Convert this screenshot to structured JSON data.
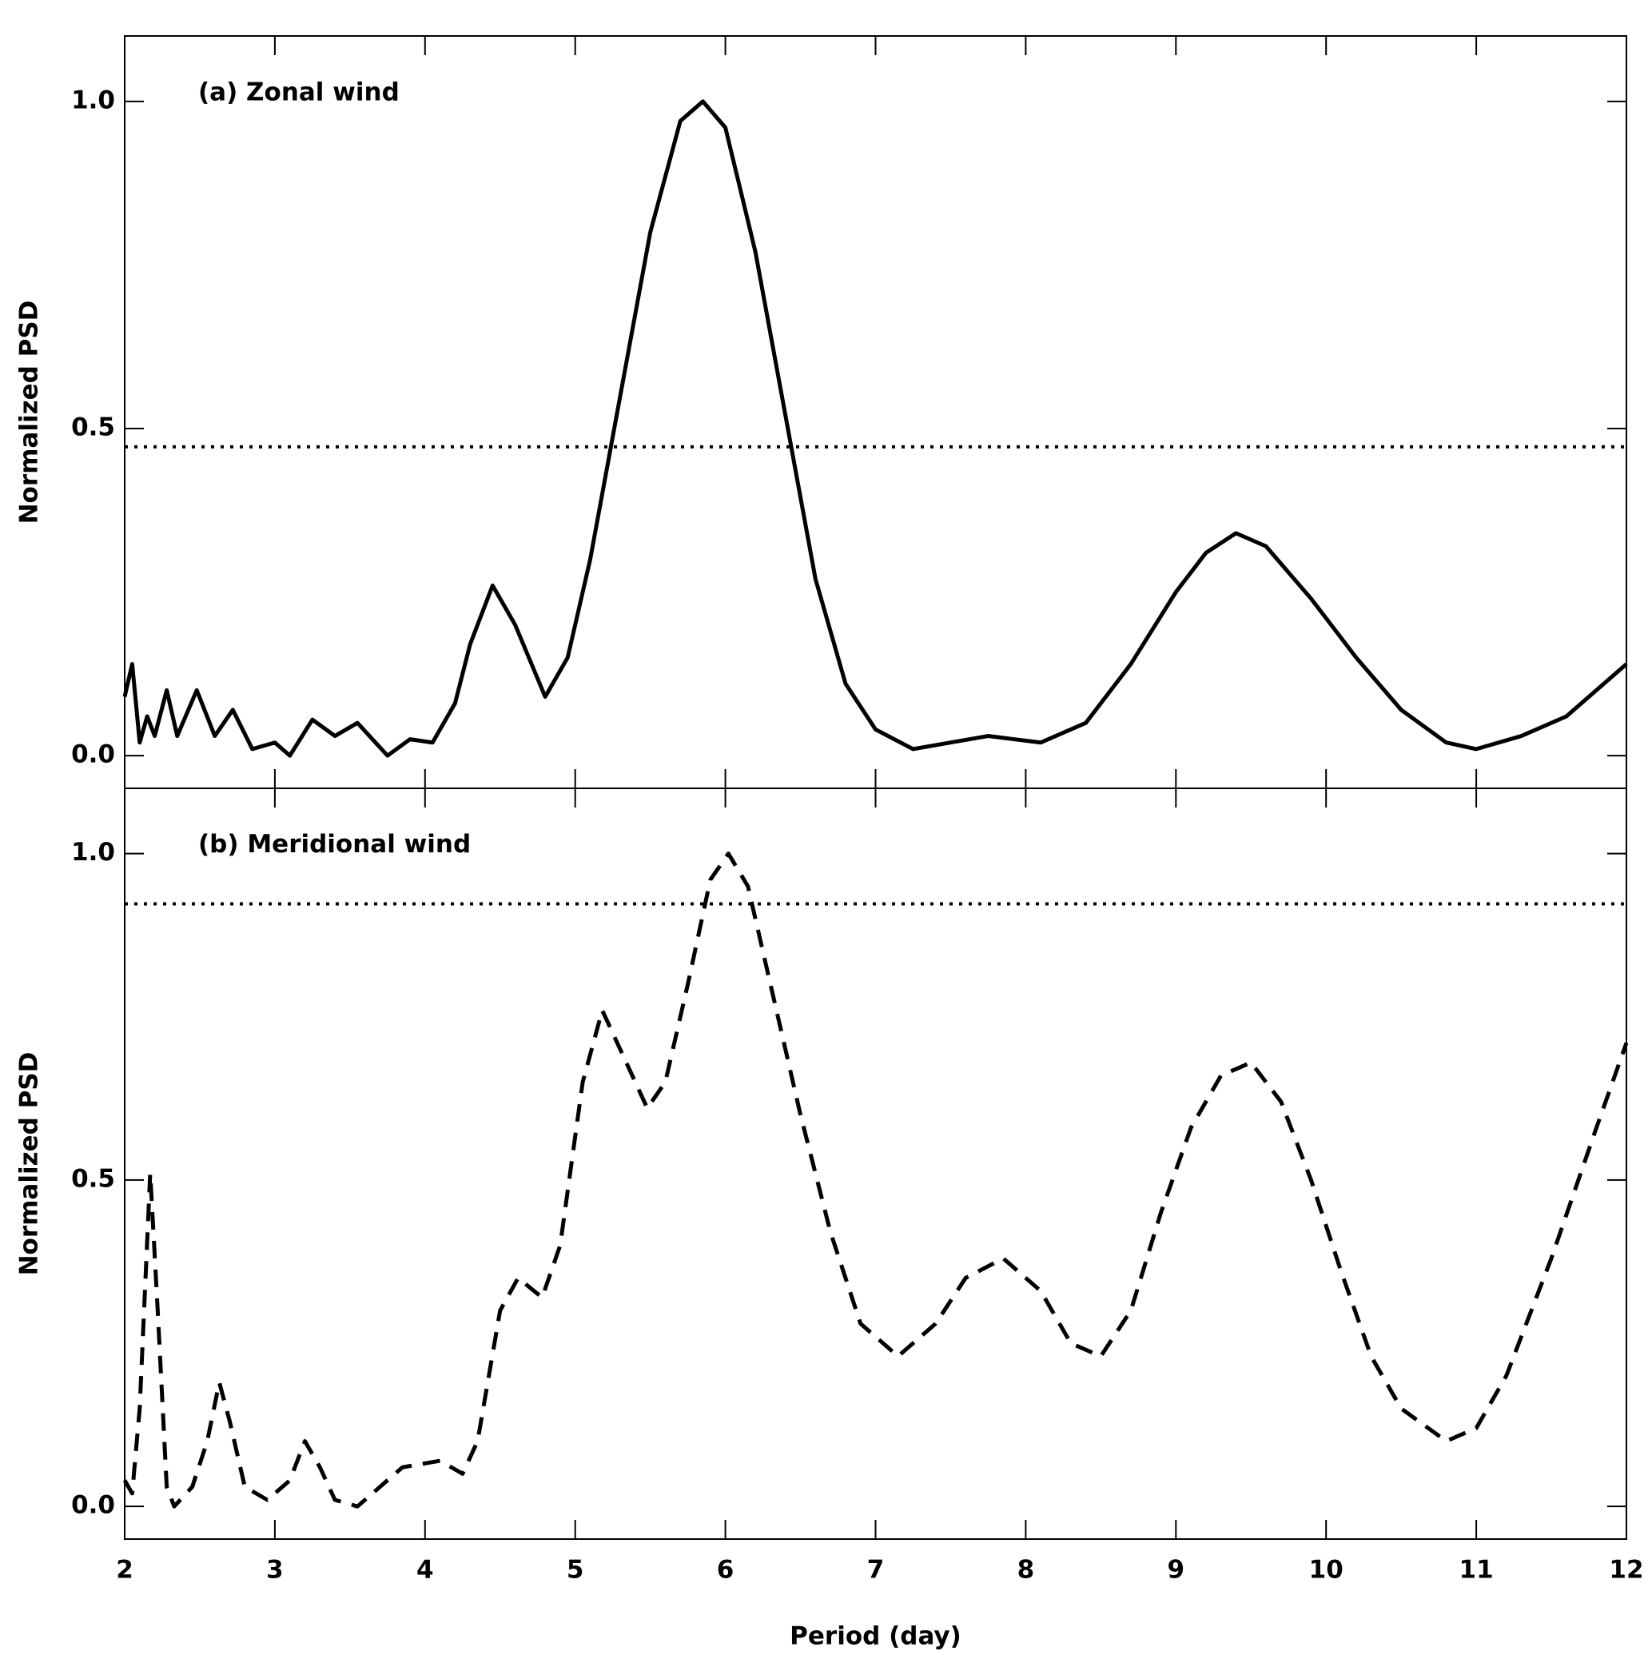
{
  "chart_data": [
    {
      "type": "line",
      "title": "(a) Zonal wind",
      "ylabel": "Normalized PSD",
      "x": [
        2.0,
        2.05,
        2.1,
        2.15,
        2.2,
        2.28,
        2.35,
        2.48,
        2.6,
        2.72,
        2.85,
        3.0,
        3.1,
        3.25,
        3.4,
        3.55,
        3.75,
        3.9,
        4.05,
        4.2,
        4.3,
        4.45,
        4.6,
        4.8,
        4.95,
        5.1,
        5.3,
        5.5,
        5.7,
        5.85,
        6.0,
        6.2,
        6.4,
        6.6,
        6.8,
        7.0,
        7.25,
        7.5,
        7.75,
        8.1,
        8.4,
        8.7,
        9.0,
        9.2,
        9.4,
        9.6,
        9.9,
        10.2,
        10.5,
        10.8,
        11.0,
        11.3,
        11.6,
        12.0
      ],
      "series": [
        {
          "color": "#000000",
          "linestyle": "solid",
          "values": [
            0.09,
            0.14,
            0.02,
            0.06,
            0.03,
            0.1,
            0.03,
            0.1,
            0.03,
            0.07,
            0.01,
            0.02,
            0.0,
            0.055,
            0.03,
            0.05,
            0.0,
            0.025,
            0.02,
            0.08,
            0.17,
            0.26,
            0.2,
            0.09,
            0.15,
            0.3,
            0.55,
            0.8,
            0.97,
            1.0,
            0.96,
            0.77,
            0.52,
            0.27,
            0.11,
            0.04,
            0.01,
            0.02,
            0.03,
            0.02,
            0.05,
            0.14,
            0.25,
            0.31,
            0.34,
            0.32,
            0.24,
            0.15,
            0.07,
            0.02,
            0.01,
            0.03,
            0.06,
            0.14
          ]
        }
      ],
      "hline": {
        "value": 0.472,
        "linestyle": "dotted"
      },
      "xlim": [
        2,
        12
      ],
      "xticks": [
        2,
        3,
        4,
        5,
        6,
        7,
        8,
        9,
        10,
        11,
        12
      ],
      "xticklabels": false,
      "ylim": [
        -0.05,
        1.1
      ],
      "yticks": [
        {
          "value": 0,
          "label": "0.0"
        },
        {
          "value": 0.5,
          "label": "0.5"
        },
        {
          "value": 1,
          "label": "1.0"
        }
      ]
    },
    {
      "type": "line",
      "title": "(b) Meridional wind",
      "ylabel": "Normalized PSD",
      "xlabel": "Period (day)",
      "x": [
        2.0,
        2.05,
        2.1,
        2.17,
        2.22,
        2.28,
        2.33,
        2.45,
        2.55,
        2.63,
        2.7,
        2.8,
        2.95,
        3.1,
        3.2,
        3.3,
        3.4,
        3.55,
        3.65,
        3.85,
        4.1,
        4.25,
        4.35,
        4.5,
        4.62,
        4.78,
        4.9,
        5.05,
        5.18,
        5.3,
        5.48,
        5.6,
        5.75,
        5.9,
        6.02,
        6.15,
        6.3,
        6.5,
        6.7,
        6.9,
        7.15,
        7.4,
        7.6,
        7.85,
        8.1,
        8.3,
        8.5,
        8.7,
        8.9,
        9.1,
        9.3,
        9.5,
        9.7,
        9.9,
        10.1,
        10.3,
        10.5,
        10.8,
        11.0,
        11.2,
        11.5,
        11.8,
        12.0
      ],
      "series": [
        {
          "color": "#000000",
          "linestyle": "dashed",
          "values": [
            0.04,
            0.02,
            0.15,
            0.51,
            0.3,
            0.03,
            0.0,
            0.03,
            0.1,
            0.19,
            0.13,
            0.03,
            0.01,
            0.04,
            0.1,
            0.06,
            0.01,
            0.0,
            0.02,
            0.06,
            0.07,
            0.05,
            0.1,
            0.3,
            0.35,
            0.32,
            0.4,
            0.65,
            0.76,
            0.7,
            0.61,
            0.65,
            0.8,
            0.96,
            1.0,
            0.95,
            0.8,
            0.6,
            0.42,
            0.28,
            0.23,
            0.28,
            0.35,
            0.38,
            0.33,
            0.25,
            0.23,
            0.3,
            0.45,
            0.58,
            0.66,
            0.68,
            0.62,
            0.5,
            0.36,
            0.23,
            0.15,
            0.1,
            0.12,
            0.2,
            0.38,
            0.58,
            0.71
          ]
        }
      ],
      "hline": {
        "value": 0.923,
        "linestyle": "dotted"
      },
      "xlim": [
        2,
        12
      ],
      "xticks": [
        2,
        3,
        4,
        5,
        6,
        7,
        8,
        9,
        10,
        11,
        12
      ],
      "xticklabels": true,
      "ylim": [
        -0.05,
        1.1
      ],
      "yticks": [
        {
          "value": 0,
          "label": "0.0"
        },
        {
          "value": 0.5,
          "label": "0.5"
        },
        {
          "value": 1,
          "label": "1.0"
        }
      ]
    }
  ]
}
